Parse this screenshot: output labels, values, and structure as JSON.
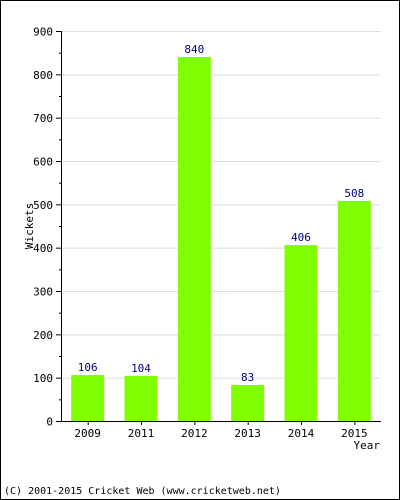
{
  "chart_data": {
    "type": "bar",
    "categories": [
      "2009",
      "2011",
      "2012",
      "2013",
      "2014",
      "2015"
    ],
    "values": [
      106,
      104,
      840,
      83,
      406,
      508
    ],
    "data_labels": [
      "106",
      "104",
      "840",
      "83",
      "406",
      "508"
    ],
    "ylabel": "Wickets",
    "xlabel": "Year",
    "ylim": [
      0,
      900
    ],
    "yticks": [
      0,
      100,
      200,
      300,
      400,
      500,
      600,
      700,
      800,
      900
    ],
    "ytick_labels": [
      "0",
      "100",
      "200",
      "300",
      "400",
      "500",
      "600",
      "700",
      "800",
      "900"
    ],
    "grid": true,
    "legend": "none"
  },
  "footer": {
    "copyright": "(C) 2001-2015 Cricket Web (www.cricketweb.net)"
  },
  "colors": {
    "bar": "#80ff00",
    "label": "#000080",
    "grid": "#dddddd",
    "axis": "#000000",
    "text": "#000000"
  }
}
